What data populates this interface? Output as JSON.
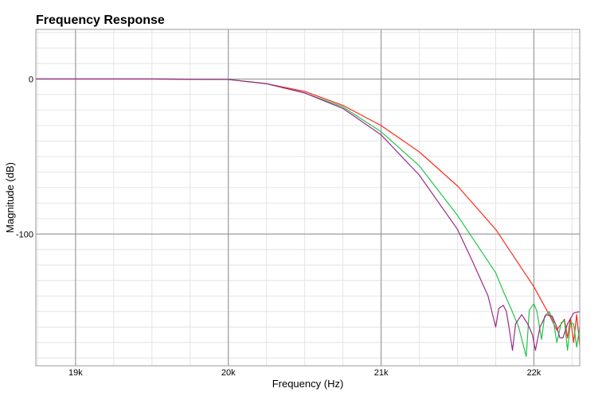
{
  "chart_data": {
    "type": "line",
    "title": "Frequency Response",
    "xlabel": "Frequency (Hz)",
    "ylabel": "Magnitude (dB)",
    "xlim": [
      18740,
      22300
    ],
    "ylim": [
      -185,
      32
    ],
    "x_major_ticks": [
      {
        "value": 19000,
        "label": "19k"
      },
      {
        "value": 20000,
        "label": "20k"
      },
      {
        "value": 21000,
        "label": "21k"
      },
      {
        "value": 22000,
        "label": "22k"
      }
    ],
    "x_minor_step": 250,
    "y_major_ticks": [
      {
        "value": 0,
        "label": "0"
      },
      {
        "value": -100,
        "label": "-100"
      }
    ],
    "y_minor_step": 10,
    "grid": true,
    "colors": {
      "background": "#ffffff",
      "minor_grid": "#e4e4e4",
      "major_grid": "#8c8c8c",
      "frame": "#9a9a9a",
      "series_red": "#ff2a1a",
      "series_green": "#22c44a",
      "series_purple": "#9b2a8a"
    },
    "series": [
      {
        "color_key": "series_red",
        "points": [
          [
            18740,
            0
          ],
          [
            19500,
            0
          ],
          [
            20000,
            -0.3
          ],
          [
            20250,
            -3
          ],
          [
            20500,
            -8
          ],
          [
            20750,
            -17
          ],
          [
            21000,
            -30
          ],
          [
            21250,
            -47
          ],
          [
            21500,
            -69
          ],
          [
            21750,
            -97
          ],
          [
            22000,
            -134
          ],
          [
            22100,
            -152
          ],
          [
            22150,
            -162
          ],
          [
            22200,
            -155
          ],
          [
            22220,
            -167
          ],
          [
            22240,
            -154
          ],
          [
            22260,
            -170
          ],
          [
            22280,
            -152
          ],
          [
            22300,
            -172
          ]
        ]
      },
      {
        "color_key": "series_green",
        "points": [
          [
            18740,
            0
          ],
          [
            19500,
            0
          ],
          [
            20000,
            -0.3
          ],
          [
            20250,
            -3
          ],
          [
            20500,
            -9
          ],
          [
            20750,
            -18
          ],
          [
            21000,
            -34
          ],
          [
            21250,
            -56
          ],
          [
            21500,
            -88
          ],
          [
            21750,
            -125
          ],
          [
            21800,
            -137
          ],
          [
            21850,
            -148
          ],
          [
            21900,
            -160
          ],
          [
            21950,
            -179
          ],
          [
            21970,
            -149
          ],
          [
            22000,
            -145
          ],
          [
            22020,
            -150
          ],
          [
            22050,
            -168
          ],
          [
            22070,
            -153
          ],
          [
            22100,
            -150
          ],
          [
            22130,
            -157
          ],
          [
            22150,
            -170
          ],
          [
            22180,
            -157
          ],
          [
            22200,
            -156
          ],
          [
            22220,
            -175
          ],
          [
            22240,
            -157
          ],
          [
            22260,
            -158
          ],
          [
            22280,
            -173
          ],
          [
            22300,
            -160
          ]
        ]
      },
      {
        "color_key": "series_purple",
        "points": [
          [
            18740,
            0
          ],
          [
            19500,
            0
          ],
          [
            20000,
            -0.3
          ],
          [
            20250,
            -3
          ],
          [
            20500,
            -9
          ],
          [
            20750,
            -19
          ],
          [
            21000,
            -36
          ],
          [
            21250,
            -62
          ],
          [
            21500,
            -97
          ],
          [
            21600,
            -118
          ],
          [
            21700,
            -140
          ],
          [
            21750,
            -160
          ],
          [
            21770,
            -148
          ],
          [
            21800,
            -146
          ],
          [
            21820,
            -150
          ],
          [
            21840,
            -162
          ],
          [
            21860,
            -175
          ],
          [
            21880,
            -158
          ],
          [
            21920,
            -152
          ],
          [
            21960,
            -158
          ],
          [
            21990,
            -165
          ],
          [
            22010,
            -175
          ],
          [
            22040,
            -160
          ],
          [
            22080,
            -152
          ],
          [
            22120,
            -153
          ],
          [
            22150,
            -160
          ],
          [
            22170,
            -167
          ],
          [
            22190,
            -167
          ],
          [
            22220,
            -158
          ],
          [
            22260,
            -151
          ],
          [
            22300,
            -150
          ]
        ]
      }
    ]
  }
}
